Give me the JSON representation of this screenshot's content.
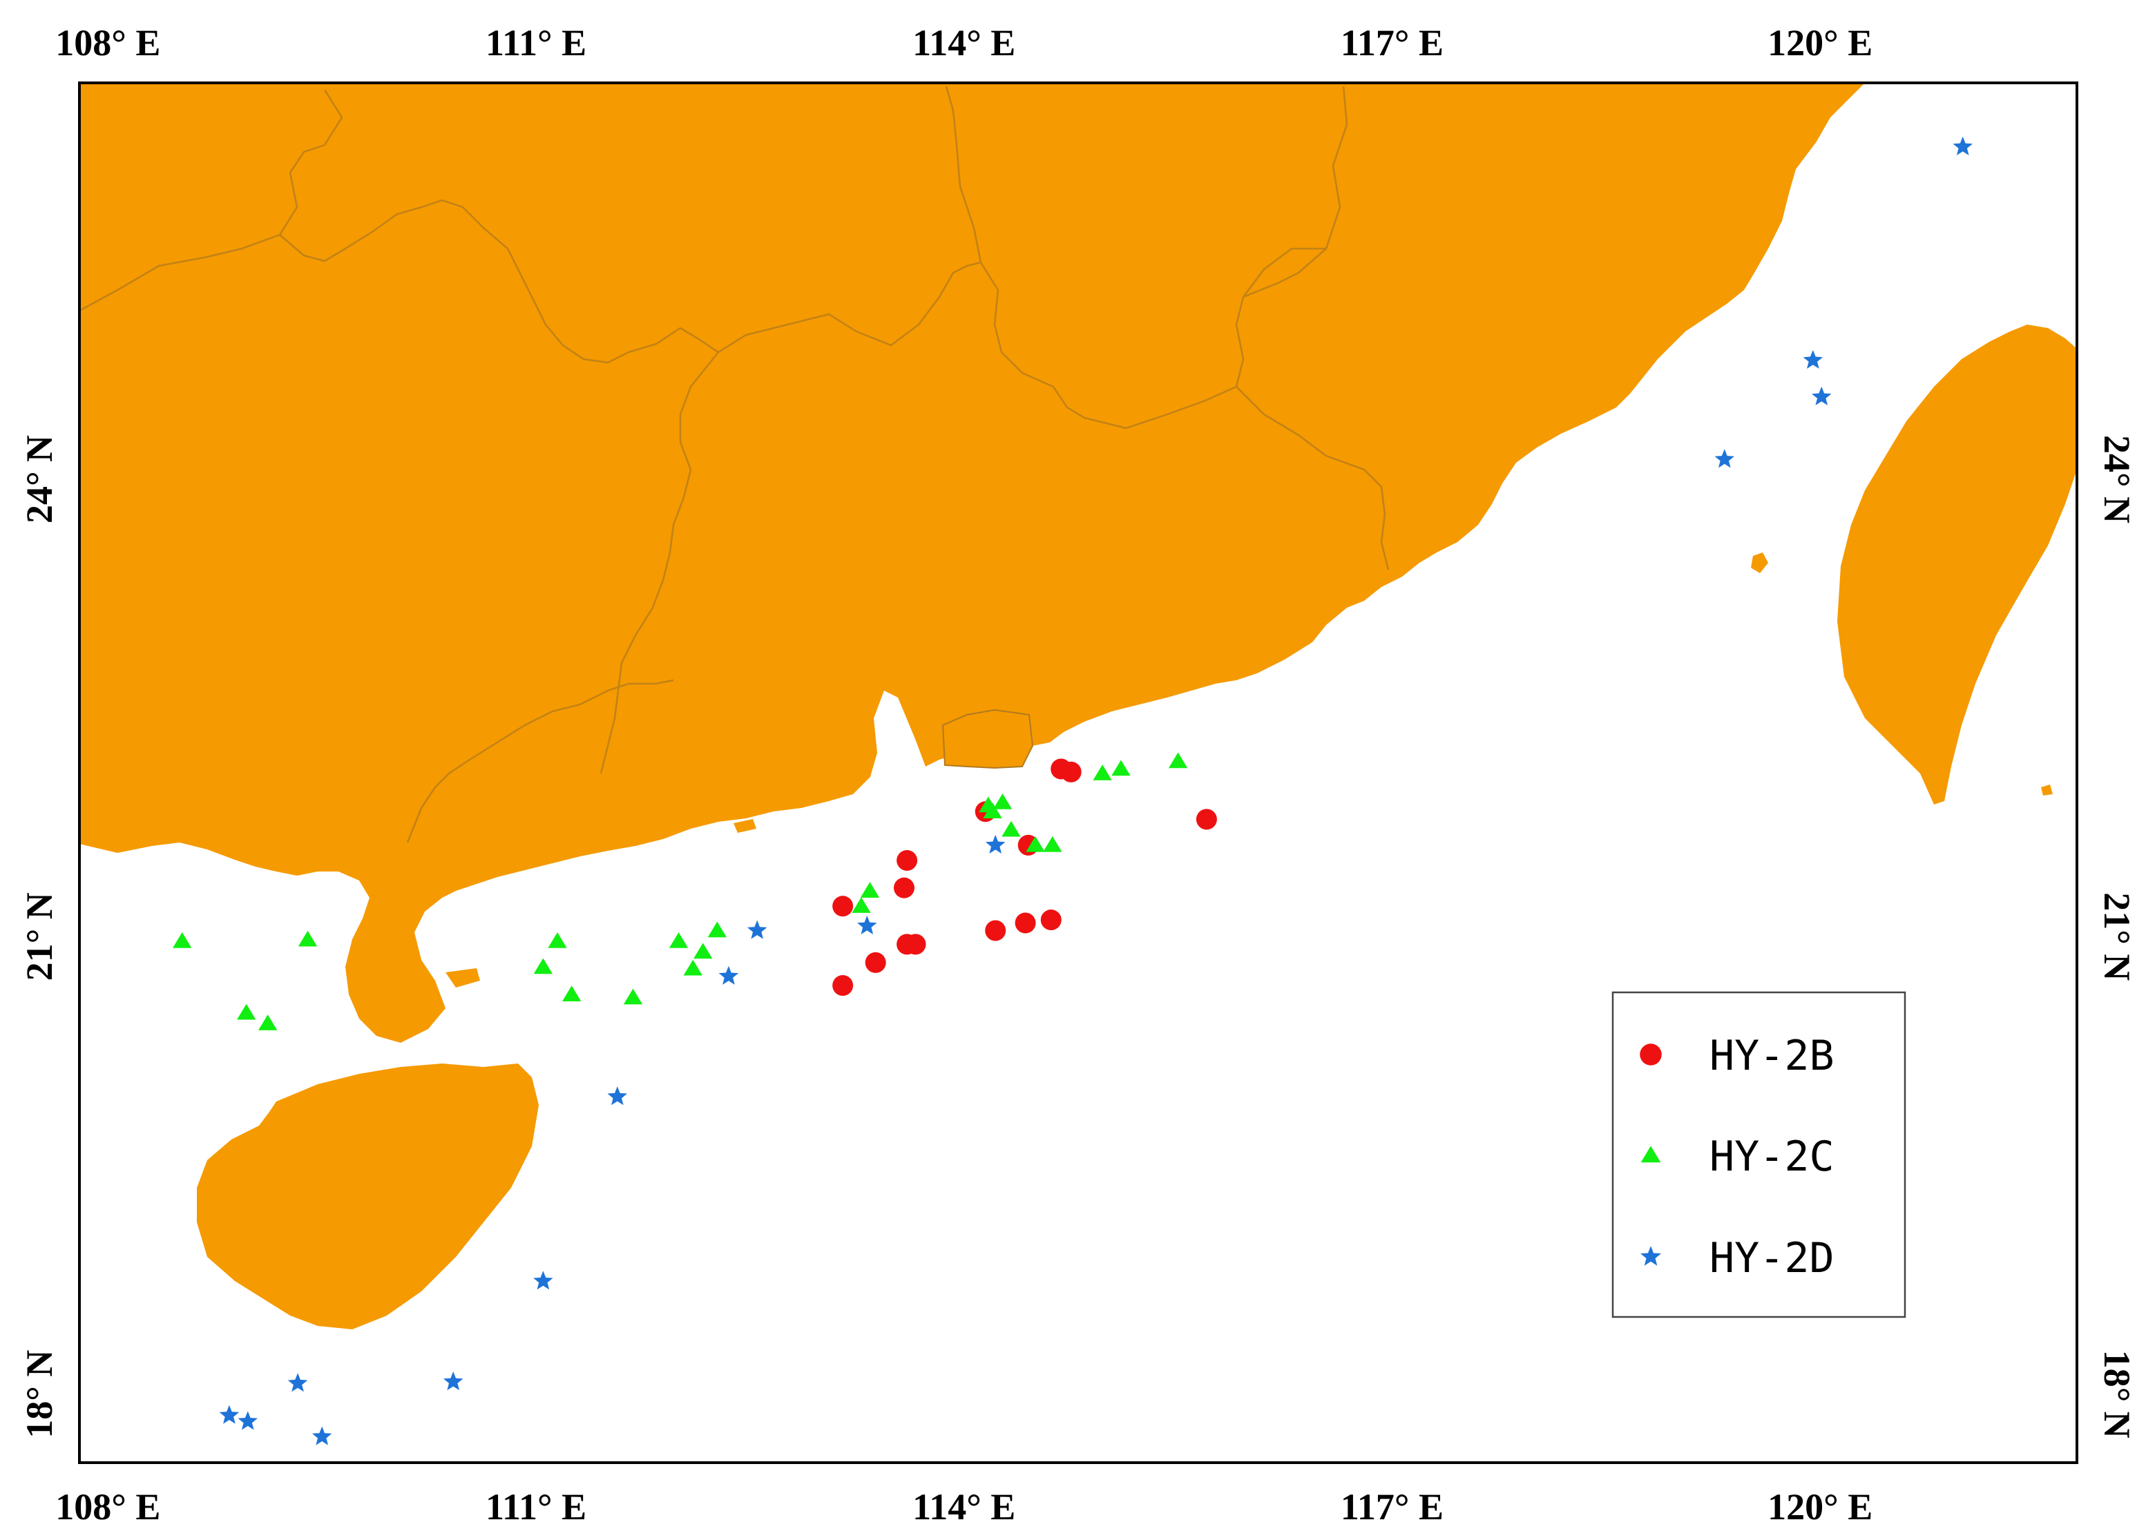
{
  "map": {
    "extent": {
      "lon_min": 107.8,
      "lon_max": 121.8,
      "lat_min": 17.55,
      "lat_max": 26.6
    },
    "land_color": "#F59A00",
    "ocean_color": "#FFFFFF",
    "boundary_color": "#B07A1F"
  },
  "x_ticks": [
    {
      "value": 108,
      "label": "108° E"
    },
    {
      "value": 111,
      "label": "111° E"
    },
    {
      "value": 114,
      "label": "114° E"
    },
    {
      "value": 117,
      "label": "117° E"
    },
    {
      "value": 120,
      "label": "120° E"
    }
  ],
  "y_ticks": [
    {
      "value": 24,
      "label": "24° N"
    },
    {
      "value": 21,
      "label": "21° N"
    },
    {
      "value": 18,
      "label": "18° N"
    }
  ],
  "legend": {
    "position": "lower-right",
    "entries": [
      {
        "label": "HY-2B",
        "marker": "circle",
        "color": "#EE1111"
      },
      {
        "label": "HY-2C",
        "marker": "triangle",
        "color": "#11EE11"
      },
      {
        "label": "HY-2D",
        "marker": "star",
        "color": "#1E73D8"
      }
    ]
  },
  "chart_data": {
    "type": "scatter",
    "xlabel": "",
    "ylabel": "",
    "xlim": [
      107.8,
      121.8
    ],
    "ylim": [
      17.55,
      26.6
    ],
    "series": [
      {
        "name": "HY-2B",
        "marker": "circle",
        "color": "#EE1111",
        "points": [
          [
            114.68,
            22.1
          ],
          [
            114.75,
            22.08
          ],
          [
            114.15,
            21.82
          ],
          [
            114.45,
            21.6
          ],
          [
            115.7,
            21.77
          ],
          [
            113.6,
            21.5
          ],
          [
            113.58,
            21.32
          ],
          [
            113.15,
            21.2
          ],
          [
            114.22,
            21.04
          ],
          [
            114.43,
            21.09
          ],
          [
            114.61,
            21.11
          ],
          [
            113.6,
            20.95
          ],
          [
            113.66,
            20.95
          ],
          [
            113.38,
            20.83
          ],
          [
            113.15,
            20.68
          ]
        ]
      },
      {
        "name": "HY-2C",
        "marker": "triangle",
        "color": "#11EE11",
        "points": [
          [
            115.5,
            22.15
          ],
          [
            115.1,
            22.1
          ],
          [
            114.97,
            22.07
          ],
          [
            114.27,
            21.88
          ],
          [
            114.17,
            21.86
          ],
          [
            114.2,
            21.82
          ],
          [
            114.33,
            21.7
          ],
          [
            114.5,
            21.6
          ],
          [
            114.62,
            21.6
          ],
          [
            113.34,
            21.3
          ],
          [
            113.28,
            21.2
          ],
          [
            108.52,
            20.97
          ],
          [
            109.4,
            20.98
          ],
          [
            111.15,
            20.97
          ],
          [
            112.0,
            20.97
          ],
          [
            112.17,
            20.9
          ],
          [
            112.27,
            21.04
          ],
          [
            112.1,
            20.79
          ],
          [
            111.05,
            20.8
          ],
          [
            111.25,
            20.62
          ],
          [
            111.68,
            20.6
          ],
          [
            108.97,
            20.5
          ],
          [
            109.12,
            20.43
          ]
        ]
      },
      {
        "name": "HY-2D",
        "marker": "star",
        "color": "#1E73D8",
        "points": [
          [
            121.0,
            26.18
          ],
          [
            119.95,
            24.78
          ],
          [
            120.01,
            24.54
          ],
          [
            119.33,
            24.13
          ],
          [
            114.22,
            21.6
          ],
          [
            113.32,
            21.07
          ],
          [
            112.55,
            21.04
          ],
          [
            112.35,
            20.74
          ],
          [
            111.57,
            19.95
          ],
          [
            111.05,
            18.74
          ],
          [
            109.33,
            18.07
          ],
          [
            110.42,
            18.08
          ],
          [
            108.85,
            17.86
          ],
          [
            108.98,
            17.82
          ],
          [
            109.5,
            17.72
          ]
        ]
      }
    ]
  }
}
